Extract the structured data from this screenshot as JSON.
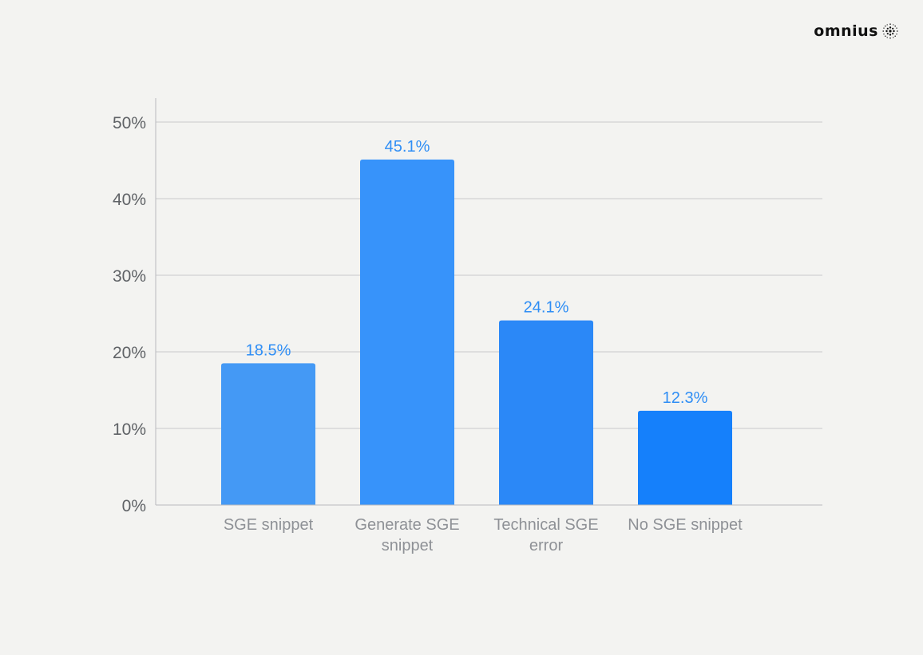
{
  "brand": {
    "name": "omnius",
    "icon": "dotted-sphere-icon"
  },
  "chart_data": {
    "type": "bar",
    "categories": [
      [
        "SGE snippet"
      ],
      [
        "Generate SGE",
        "snippet"
      ],
      [
        "Technical SGE",
        "error"
      ],
      [
        "No SGE snippet"
      ]
    ],
    "values": [
      18.5,
      45.1,
      24.1,
      12.3
    ],
    "value_labels": [
      "18.5%",
      "45.1%",
      "24.1%",
      "12.3%"
    ],
    "bar_colors": [
      "#4499f5",
      "#3793fa",
      "#2b88f7",
      "#1580fb"
    ],
    "ylim": [
      0,
      50
    ],
    "yticks": [
      0,
      10,
      20,
      30,
      40,
      50
    ],
    "ytick_labels": [
      "0%",
      "10%",
      "20%",
      "30%",
      "40%",
      "50%"
    ],
    "title": "",
    "xlabel": "",
    "ylabel": "",
    "grid": true,
    "colors": {
      "gridline": "#c9cacc",
      "axis": "#b8babd",
      "value_label": "#2f8ef5",
      "tick_label": "#5f6266",
      "category_label": "#8e9196"
    }
  }
}
